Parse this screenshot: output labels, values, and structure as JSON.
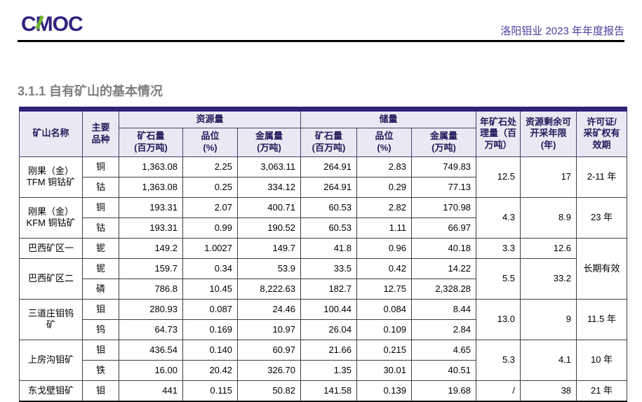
{
  "header": {
    "logo_c": "C",
    "logo_m": "M",
    "logo_oc": "OC",
    "report_title": "洛阳钼业 2023 年年度报告"
  },
  "section_title": "3.1.1 自有矿山的基本情况",
  "colors": {
    "logo_purple": "#34217e",
    "logo_green": "#6cb52d",
    "title_purple": "#4b3fa0",
    "section_gray": "#7f7f7f",
    "table_top_band": "#2f2277",
    "header_bg": "#eae9f3",
    "header_text": "#201a5a"
  },
  "table": {
    "headers": {
      "mine_name": "矿山名称",
      "commodity": "主要\n品种",
      "resources_group": "资源量",
      "reserves_group": "储量",
      "ore_qty": "矿石量\n(百万吨)",
      "grade": "品位\n(%)",
      "metal_qty": "金属量\n(万吨)",
      "annual_processing": "年矿石处\n理量（百\n万吨）",
      "remaining_years": "资源剩余可\n开采年限\n(年)",
      "license": "许可证/\n采矿权有\n效期"
    },
    "rows": [
      {
        "mine": {
          "text": "刚果（金）\nTFM 铜钴矿",
          "rowspan": 2
        },
        "commodity": "铜",
        "resources": [
          "1,363.08",
          "2.25",
          "3,063.11"
        ],
        "reserves": [
          "264.91",
          "2.83",
          "749.83"
        ],
        "processing": {
          "text": "12.5",
          "rowspan": 2
        },
        "years": {
          "text": "17",
          "rowspan": 2
        },
        "license": {
          "text": "2-11 年",
          "rowspan": 2
        }
      },
      {
        "commodity": "钴",
        "resources": [
          "1,363.08",
          "0.25",
          "334.12"
        ],
        "reserves": [
          "264.91",
          "0.29",
          "77.13"
        ]
      },
      {
        "mine": {
          "text": "刚果（金）\nKFM 铜钴矿",
          "rowspan": 2
        },
        "commodity": "铜",
        "resources": [
          "193.31",
          "2.07",
          "400.71"
        ],
        "reserves": [
          "60.53",
          "2.82",
          "170.98"
        ],
        "processing": {
          "text": "4.3",
          "rowspan": 2
        },
        "years": {
          "text": "8.9",
          "rowspan": 2
        },
        "license": {
          "text": "23 年",
          "rowspan": 2
        }
      },
      {
        "commodity": "钴",
        "resources": [
          "193.31",
          "0.99",
          "190.52"
        ],
        "reserves": [
          "60.53",
          "1.11",
          "66.97"
        ]
      },
      {
        "mine": {
          "text": "巴西矿区一",
          "rowspan": 1
        },
        "commodity": "铌",
        "resources": [
          "149.2",
          "1.0027",
          "149.7"
        ],
        "reserves": [
          "41.8",
          "0.96",
          "40.18"
        ],
        "processing": {
          "text": "3.3",
          "rowspan": 1
        },
        "years": {
          "text": "12.6",
          "rowspan": 1
        },
        "license": {
          "text": "长期有效",
          "rowspan": 3
        }
      },
      {
        "mine": {
          "text": "巴西矿区二",
          "rowspan": 2
        },
        "commodity": "铌",
        "resources": [
          "159.7",
          "0.34",
          "53.9"
        ],
        "reserves": [
          "33.5",
          "0.42",
          "14.22"
        ],
        "processing": {
          "text": "5.5",
          "rowspan": 2
        },
        "years": {
          "text": "33.2",
          "rowspan": 2
        }
      },
      {
        "commodity": "磷",
        "resources": [
          "786.8",
          "10.45",
          "8,222.63"
        ],
        "reserves": [
          "182.7",
          "12.75",
          "2,328.28"
        ]
      },
      {
        "mine": {
          "text": "三道庄钼钨\n矿",
          "rowspan": 2
        },
        "commodity": "钼",
        "resources": [
          "280.93",
          "0.087",
          "24.46"
        ],
        "reserves": [
          "100.44",
          "0.084",
          "8.44"
        ],
        "processing": {
          "text": "13.0",
          "rowspan": 2
        },
        "years": {
          "text": "9",
          "rowspan": 2
        },
        "license": {
          "text": "11.5 年",
          "rowspan": 2
        }
      },
      {
        "commodity": "钨",
        "resources": [
          "64.73",
          "0.169",
          "10.97"
        ],
        "reserves": [
          "26.04",
          "0.109",
          "2.84"
        ]
      },
      {
        "mine": {
          "text": "上房沟钼矿",
          "rowspan": 2
        },
        "commodity": "钼",
        "resources": [
          "436.54",
          "0.140",
          "60.97"
        ],
        "reserves": [
          "21.66",
          "0.215",
          "4.65"
        ],
        "processing": {
          "text": "5.3",
          "rowspan": 2
        },
        "years": {
          "text": "4.1",
          "rowspan": 2
        },
        "license": {
          "text": "10 年",
          "rowspan": 2
        }
      },
      {
        "commodity": "铁",
        "resources": [
          "16.00",
          "20.42",
          "326.70"
        ],
        "reserves": [
          "1.35",
          "30.01",
          "40.51"
        ]
      },
      {
        "mine": {
          "text": "东戈壁钼矿",
          "rowspan": 1
        },
        "commodity": "钼",
        "resources": [
          "441",
          "0.115",
          "50.82"
        ],
        "reserves": [
          "141.58",
          "0.139",
          "19.68"
        ],
        "processing": {
          "text": "/",
          "rowspan": 1
        },
        "years": {
          "text": "38",
          "rowspan": 1
        },
        "license": {
          "text": "21 年",
          "rowspan": 1
        }
      }
    ]
  }
}
